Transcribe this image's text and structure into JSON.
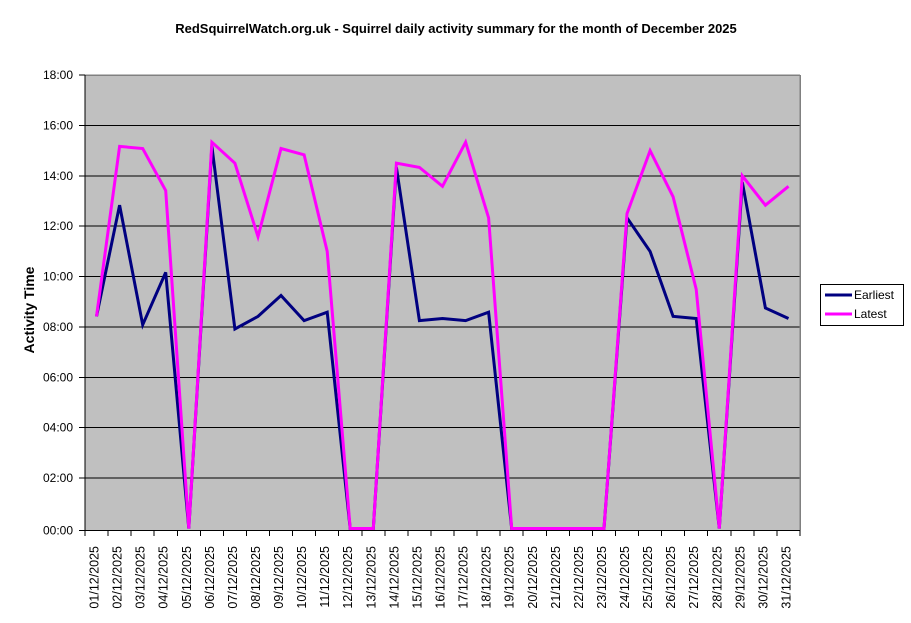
{
  "chart_data": {
    "type": "line",
    "title": "RedSquirrelWatch.org.uk - Squirrel daily activity summary for the month of December 2025",
    "ylabel": "Activity Time",
    "xlabel": "",
    "ylim_hours": [
      0,
      18
    ],
    "ytick_labels": [
      "00:00",
      "02:00",
      "04:00",
      "06:00",
      "08:00",
      "10:00",
      "12:00",
      "14:00",
      "16:00",
      "18:00"
    ],
    "grid": "horizontal",
    "legend_position": "right",
    "plot_background_color": "#c0c0c0",
    "plot_border_color": "#808080",
    "gridline_color": "#000000",
    "categories": [
      "01/12/2025",
      "02/12/2025",
      "03/12/2025",
      "04/12/2025",
      "05/12/2025",
      "06/12/2025",
      "07/12/2025",
      "08/12/2025",
      "09/12/2025",
      "10/12/2025",
      "11/12/2025",
      "12/12/2025",
      "13/12/2025",
      "14/12/2025",
      "15/12/2025",
      "16/12/2025",
      "17/12/2025",
      "18/12/2025",
      "19/12/2025",
      "20/12/2025",
      "21/12/2025",
      "22/12/2025",
      "23/12/2025",
      "24/12/2025",
      "25/12/2025",
      "26/12/2025",
      "27/12/2025",
      "28/12/2025",
      "29/12/2025",
      "30/12/2025",
      "31/12/2025"
    ],
    "series": [
      {
        "name": "Earliest",
        "color": "#000080",
        "values_hhmm": [
          "08:25",
          "12:50",
          "08:05",
          "10:10",
          "00:00",
          "15:10",
          "07:55",
          "08:25",
          "09:15",
          "08:15",
          "08:35",
          "00:00",
          "00:00",
          "14:20",
          "08:15",
          "08:20",
          "08:15",
          "08:35",
          "00:00",
          "00:00",
          "00:00",
          "00:00",
          "00:00",
          "12:20",
          "11:00",
          "08:25",
          "08:20",
          "00:00",
          "13:45",
          "08:45",
          "08:20"
        ]
      },
      {
        "name": "Latest",
        "color": "#ff00ff",
        "values_hhmm": [
          "08:25",
          "15:10",
          "15:05",
          "13:25",
          "00:00",
          "15:20",
          "14:30",
          "11:35",
          "15:05",
          "14:50",
          "11:00",
          "00:00",
          "00:00",
          "14:30",
          "14:20",
          "13:35",
          "15:20",
          "12:20",
          "00:00",
          "00:00",
          "00:00",
          "00:00",
          "00:00",
          "12:30",
          "15:00",
          "13:10",
          "09:30",
          "00:00",
          "14:00",
          "12:50",
          "13:35"
        ]
      }
    ]
  }
}
